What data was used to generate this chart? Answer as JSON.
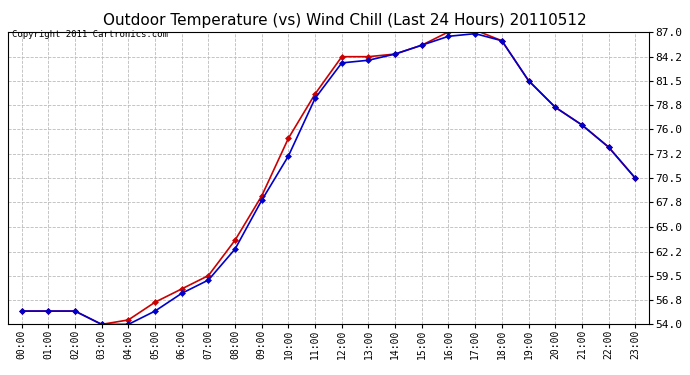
{
  "title": "Outdoor Temperature (vs) Wind Chill (Last 24 Hours) 20110512",
  "copyright": "Copyright 2011 Cartronics.com",
  "x_labels": [
    "00:00",
    "01:00",
    "02:00",
    "03:00",
    "04:00",
    "05:00",
    "06:00",
    "07:00",
    "08:00",
    "09:00",
    "10:00",
    "11:00",
    "12:00",
    "13:00",
    "14:00",
    "15:00",
    "16:00",
    "17:00",
    "18:00",
    "19:00",
    "20:00",
    "21:00",
    "22:00",
    "23:00"
  ],
  "outdoor_temp": [
    55.5,
    55.5,
    55.5,
    54.0,
    54.5,
    56.5,
    58.0,
    59.5,
    63.5,
    68.5,
    75.0,
    80.0,
    84.2,
    84.2,
    84.5,
    85.5,
    87.0,
    87.2,
    86.0,
    81.5,
    78.5,
    76.5,
    74.0,
    70.5
  ],
  "wind_chill": [
    55.5,
    55.5,
    55.5,
    54.0,
    54.0,
    55.5,
    57.5,
    59.0,
    62.5,
    68.0,
    73.0,
    79.5,
    83.5,
    83.8,
    84.5,
    85.5,
    86.5,
    86.8,
    86.0,
    81.5,
    78.5,
    76.5,
    74.0,
    70.5
  ],
  "temp_color": "#cc0000",
  "chill_color": "#0000cc",
  "ylim_min": 54.0,
  "ylim_max": 87.0,
  "yticks": [
    54.0,
    56.8,
    59.5,
    62.2,
    65.0,
    67.8,
    70.5,
    73.2,
    76.0,
    78.8,
    81.5,
    84.2,
    87.0
  ],
  "background_color": "#ffffff",
  "grid_color": "#bbbbbb",
  "title_fontsize": 11,
  "copyright_fontsize": 6.5,
  "tick_fontsize": 7,
  "ytick_fontsize": 8
}
